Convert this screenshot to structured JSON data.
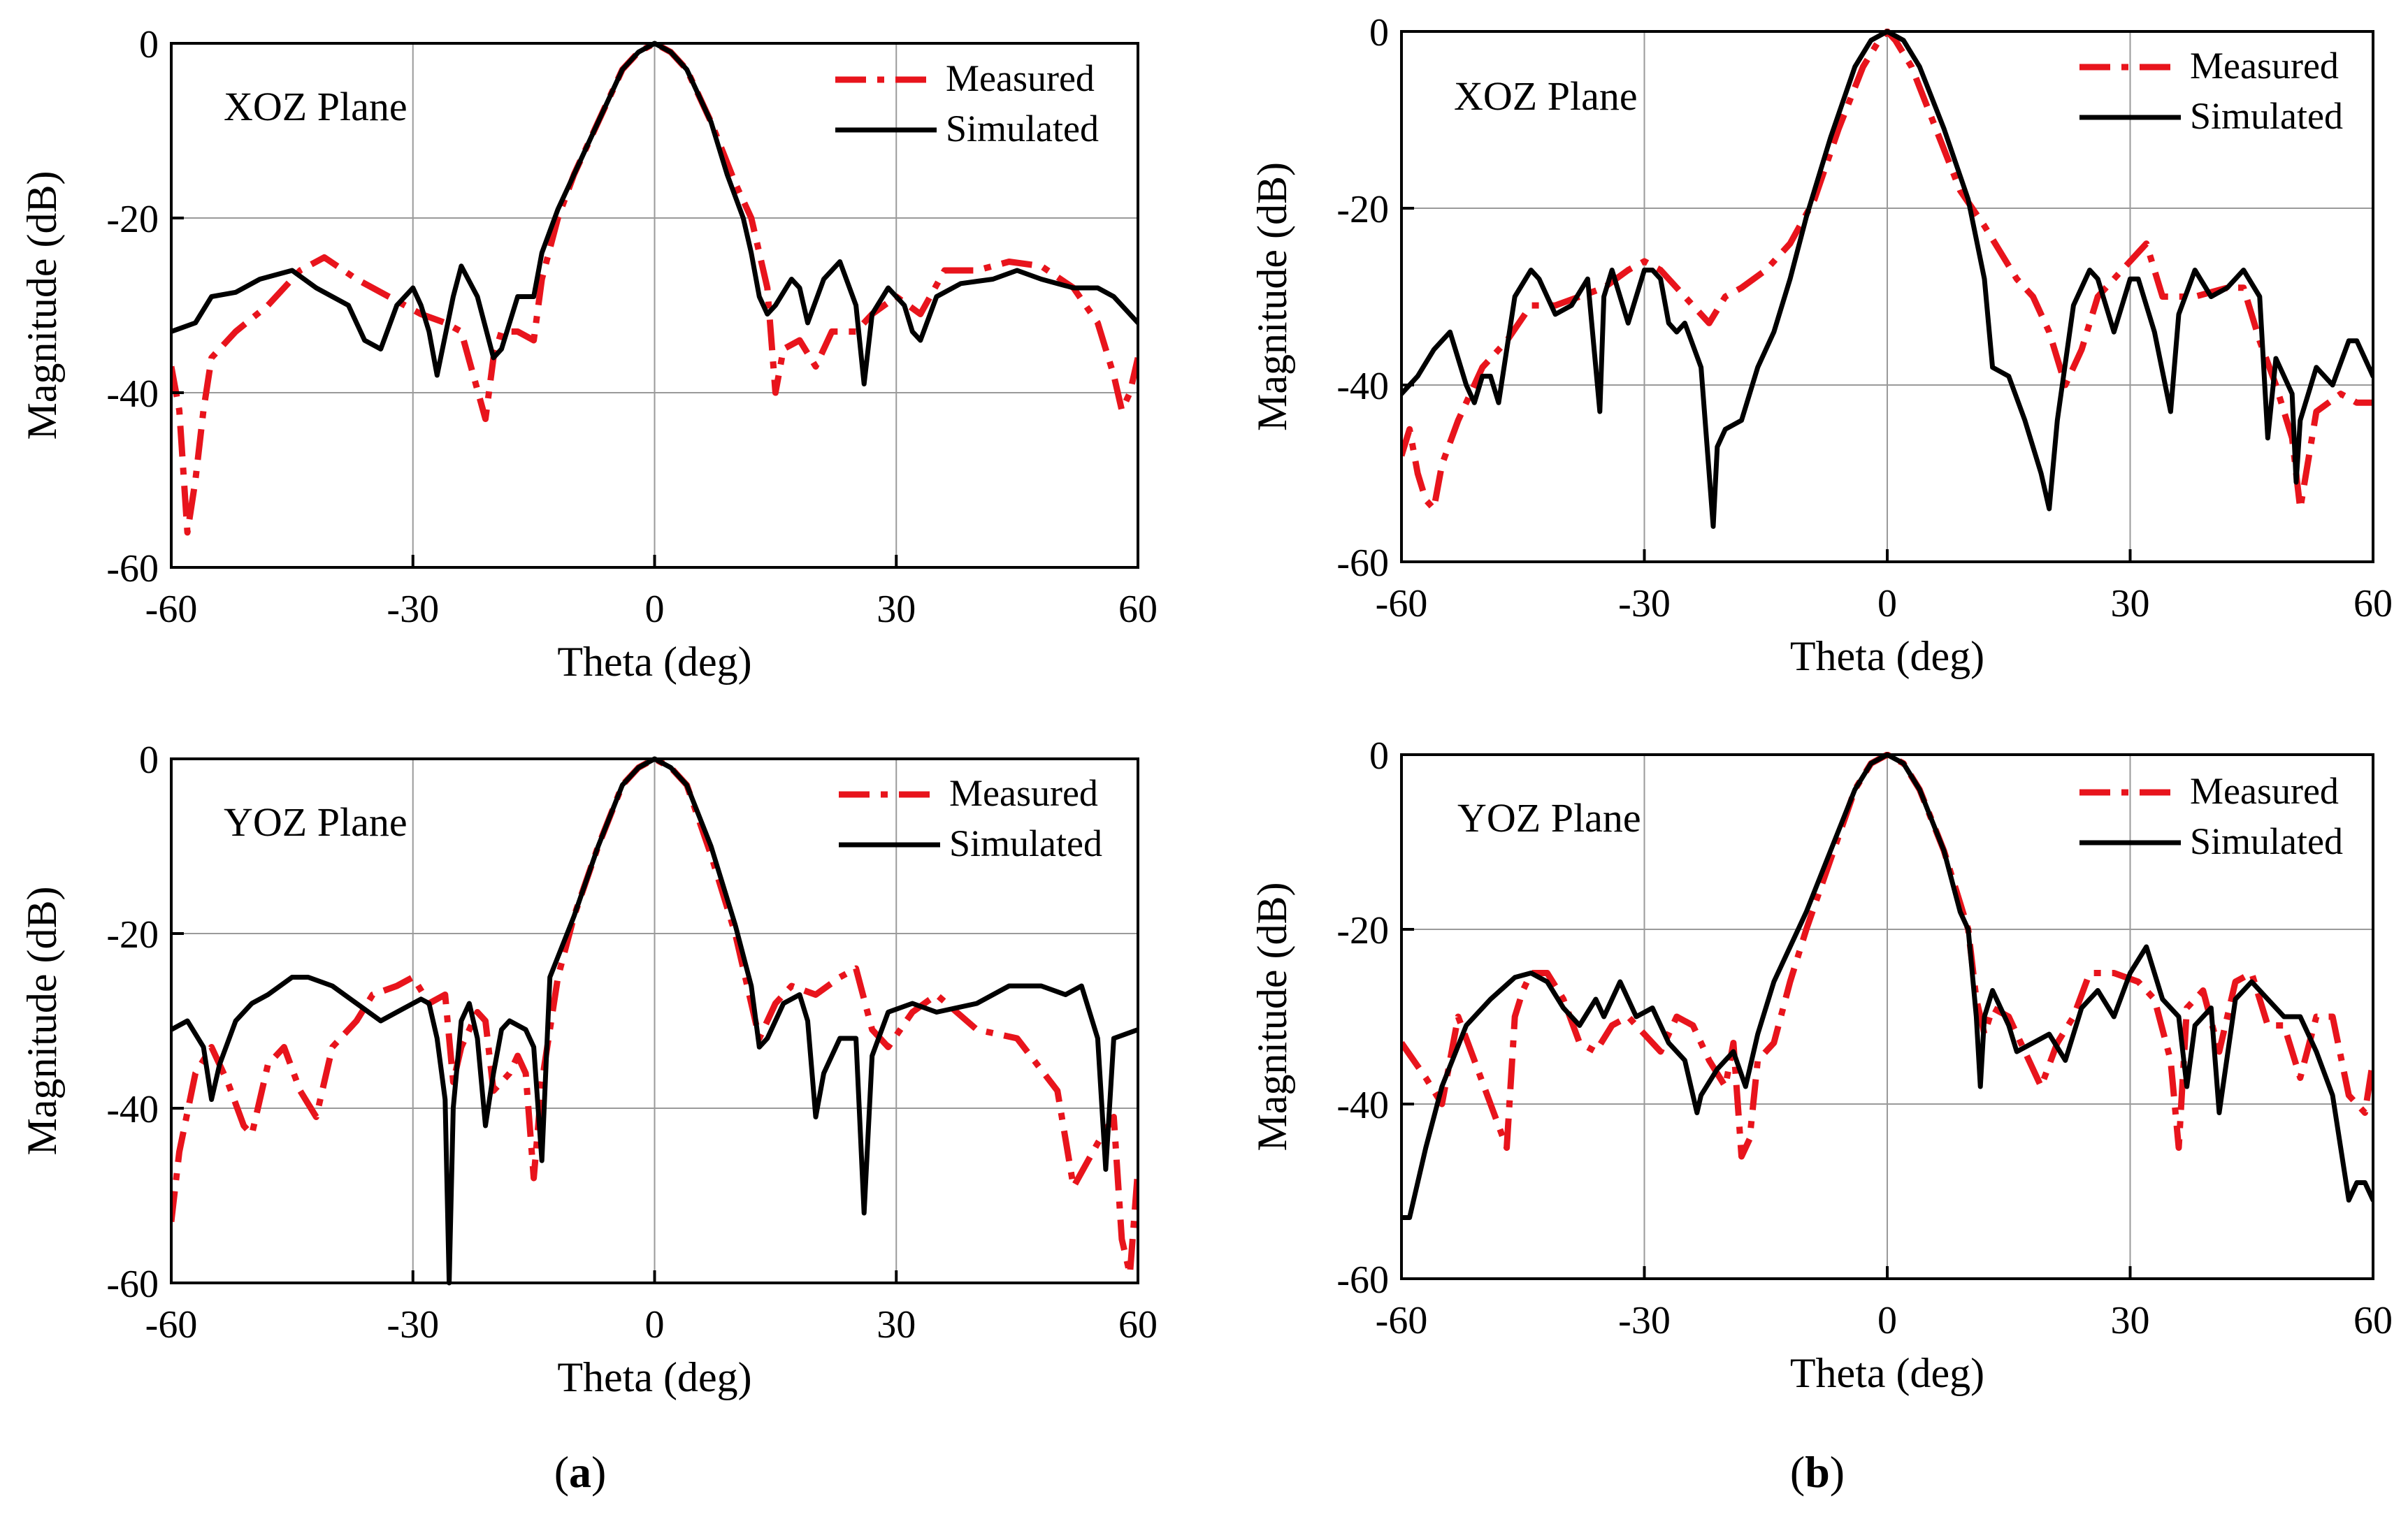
{
  "colors": {
    "measured": "#e8141c",
    "simulated": "#000000",
    "grid": "#9a9a9a"
  },
  "panel_labels": [
    {
      "open": "(",
      "letter": "a",
      "close": ")"
    },
    {
      "open": "(",
      "letter": "b",
      "close": ")"
    }
  ],
  "chart_data": [
    {
      "type": "line",
      "panel": "a",
      "plane": "XOZ Plane",
      "xlabel": "Theta (deg)",
      "ylabel": "Magnitude (dB)",
      "xlim": [
        -60,
        60
      ],
      "ylim": [
        -60,
        0
      ],
      "xticks": [
        "-60",
        "-30",
        "0",
        "30",
        "60"
      ],
      "yticks": [
        "0",
        "-20",
        "-40",
        "-60"
      ],
      "grid": true,
      "legend": "top-right",
      "series": [
        {
          "name": "Measured",
          "style": "dash-dot",
          "x": [
            -60,
            -59,
            -58,
            -57,
            -56,
            -55,
            -52,
            -48,
            -44,
            -41,
            -37,
            -33,
            -29,
            -26,
            -24,
            -21,
            -20,
            -19,
            -17,
            -15,
            -14,
            -12,
            -10,
            -7,
            -4,
            -2,
            0,
            2,
            4,
            7,
            10,
            12,
            13,
            14,
            15,
            16,
            18,
            20,
            22,
            25,
            27,
            30,
            33,
            36,
            40,
            44,
            48,
            52,
            55,
            57,
            58,
            59,
            60
          ],
          "y": [
            -37,
            -42,
            -56,
            -50,
            -42,
            -36,
            -33,
            -30,
            -26,
            -24.5,
            -27,
            -29,
            -31,
            -32,
            -33,
            -43,
            -36,
            -33,
            -33,
            -34,
            -27,
            -20,
            -15,
            -9,
            -3,
            -1,
            0,
            -1,
            -3,
            -9,
            -16,
            -20,
            -24,
            -28,
            -40,
            -35,
            -34,
            -37,
            -33,
            -33,
            -31,
            -29,
            -31,
            -26,
            -26,
            -25,
            -25.5,
            -28,
            -32,
            -38,
            -42,
            -40,
            -36
          ]
        },
        {
          "name": "Simulated",
          "style": "solid",
          "x": [
            -60,
            -57,
            -55,
            -52,
            -49,
            -45,
            -42,
            -38,
            -36,
            -34,
            -32,
            -30,
            -29,
            -28,
            -27,
            -25,
            -24,
            -22,
            -20,
            -19,
            -17,
            -15,
            -14,
            -12,
            -10,
            -7,
            -4,
            -2,
            0,
            2,
            4,
            7,
            9,
            11,
            12,
            13,
            14,
            15,
            17,
            18,
            19,
            21,
            23,
            25,
            26,
            27,
            29,
            31,
            32,
            33,
            35,
            38,
            42,
            45,
            48,
            52,
            55,
            57,
            60
          ],
          "y": [
            -33,
            -32,
            -29,
            -28.5,
            -27,
            -26,
            -28,
            -30,
            -34,
            -35,
            -30,
            -28,
            -30,
            -33,
            -38,
            -29,
            -25.5,
            -29,
            -36,
            -35,
            -29,
            -29,
            -24,
            -19,
            -15,
            -9,
            -3,
            -1,
            0,
            -1,
            -3,
            -9,
            -15,
            -20,
            -24,
            -29,
            -31,
            -30,
            -27,
            -28,
            -32,
            -27,
            -25,
            -30,
            -39,
            -31,
            -28,
            -30,
            -33,
            -34,
            -29,
            -27.5,
            -27,
            -26,
            -27,
            -28,
            -28,
            -29,
            -32
          ]
        }
      ]
    },
    {
      "type": "line",
      "panel": "a",
      "plane": "YOZ Plane",
      "xlabel": "Theta (deg)",
      "ylabel": "Magnitude (dB)",
      "xlim": [
        -60,
        60
      ],
      "ylim": [
        -60,
        0
      ],
      "xticks": [
        "-60",
        "-30",
        "0",
        "30",
        "60"
      ],
      "yticks": [
        "0",
        "-20",
        "-40",
        "-60"
      ],
      "grid": true,
      "legend": "top-right",
      "series": [
        {
          "name": "Measured",
          "style": "dash-dot",
          "x": [
            -60,
            -59,
            -57,
            -55,
            -53,
            -51,
            -50,
            -48,
            -46,
            -44,
            -42,
            -40,
            -37,
            -35,
            -32,
            -30,
            -28,
            -26,
            -25,
            -24,
            -22,
            -21,
            -20,
            -18,
            -17,
            -16,
            -15,
            -14,
            -12,
            -10,
            -7,
            -4,
            -2,
            0,
            2,
            4,
            7,
            10,
            12,
            13,
            15,
            17,
            20,
            23,
            25,
            27,
            29,
            32,
            35,
            40,
            45,
            50,
            52,
            55,
            57,
            58,
            59,
            60
          ],
          "y": [
            -53,
            -45,
            -36,
            -33,
            -37,
            -42,
            -43,
            -35,
            -33,
            -38,
            -41,
            -33,
            -30,
            -27,
            -26,
            -25,
            -28,
            -27,
            -37,
            -33,
            -29,
            -30,
            -38,
            -36,
            -34,
            -36,
            -48,
            -37,
            -25,
            -18,
            -10,
            -3,
            -1,
            0,
            -1,
            -3,
            -11,
            -20,
            -28,
            -32,
            -28,
            -26,
            -27,
            -25,
            -24,
            -31,
            -33,
            -29,
            -27,
            -31,
            -32,
            -38,
            -49,
            -44,
            -41,
            -55,
            -59,
            -47
          ]
        },
        {
          "name": "Simulated",
          "style": "solid",
          "x": [
            -60,
            -58,
            -56,
            -55,
            -54,
            -52,
            -50,
            -48,
            -45,
            -43,
            -40,
            -37,
            -34,
            -32,
            -29,
            -28,
            -27,
            -26,
            -25.5,
            -25,
            -24,
            -23,
            -22,
            -21,
            -20,
            -19,
            -18,
            -16,
            -15,
            -14,
            -13,
            -10,
            -7,
            -4,
            -2,
            0,
            2,
            4,
            7,
            10,
            12,
            13,
            14,
            16,
            18,
            19,
            20,
            21,
            23,
            25,
            26,
            27,
            29,
            32,
            35,
            40,
            44,
            48,
            51,
            53,
            55,
            56,
            57,
            60
          ],
          "y": [
            -31,
            -30,
            -33,
            -39,
            -35,
            -30,
            -28,
            -27,
            -25,
            -25,
            -26,
            -28,
            -30,
            -29,
            -27.5,
            -28,
            -32,
            -39,
            -60,
            -40,
            -30,
            -28,
            -32,
            -42,
            -36,
            -31,
            -30,
            -31,
            -33,
            -46,
            -25,
            -18,
            -10,
            -3,
            -1,
            0,
            -1,
            -3,
            -10,
            -19,
            -26,
            -33,
            -32,
            -28,
            -27,
            -30,
            -41,
            -36,
            -32,
            -32,
            -52,
            -34,
            -29,
            -28,
            -29,
            -28,
            -26,
            -26,
            -27,
            -26,
            -32,
            -47,
            -32,
            -31
          ]
        }
      ]
    },
    {
      "type": "line",
      "panel": "b",
      "plane": "XOZ Plane",
      "xlabel": "Theta (deg)",
      "ylabel": "Magnitude (dB)",
      "xlim": [
        -60,
        60
      ],
      "ylim": [
        -60,
        0
      ],
      "xticks": [
        "-60",
        "-30",
        "0",
        "30",
        "60"
      ],
      "yticks": [
        "0",
        "-20",
        "-40",
        "-60"
      ],
      "grid": true,
      "legend": "top-right",
      "series": [
        {
          "name": "Measured",
          "style": "dash-dot",
          "x": [
            -60,
            -59,
            -58,
            -57,
            -56,
            -55,
            -53,
            -50,
            -47,
            -44,
            -41,
            -38,
            -35,
            -32,
            -30,
            -28,
            -25,
            -22,
            -20,
            -18,
            -15,
            -12,
            -9,
            -6,
            -3,
            -1,
            0,
            1,
            3,
            6,
            9,
            12,
            14,
            16,
            18,
            20,
            22,
            24,
            26,
            29,
            32,
            34,
            38,
            42,
            44,
            46,
            48,
            50,
            51,
            53,
            56,
            58,
            60
          ],
          "y": [
            -48,
            -45,
            -50,
            -53,
            -54,
            -49,
            -44,
            -38,
            -35,
            -31,
            -31,
            -30,
            -29,
            -27,
            -26,
            -27,
            -30,
            -33,
            -30,
            -29,
            -27,
            -24,
            -19,
            -11,
            -4,
            -1,
            0,
            -1,
            -4,
            -11,
            -18,
            -22,
            -25,
            -28,
            -30,
            -34,
            -40,
            -36,
            -30,
            -27,
            -24,
            -30,
            -30,
            -29,
            -29,
            -35,
            -40,
            -46,
            -54,
            -43,
            -41,
            -42,
            -42
          ]
        },
        {
          "name": "Simulated",
          "style": "solid",
          "x": [
            -60,
            -58,
            -56,
            -54,
            -52,
            -51,
            -50,
            -49,
            -48,
            -46,
            -44,
            -43,
            -41,
            -39,
            -37,
            -35.5,
            -35,
            -34,
            -32,
            -30,
            -29,
            -28,
            -27,
            -26,
            -25,
            -23,
            -21.5,
            -21,
            -20,
            -18,
            -16,
            -14,
            -12,
            -10,
            -7,
            -4,
            -2,
            0,
            2,
            4,
            7,
            10,
            12,
            13,
            15,
            17,
            19,
            20,
            21,
            23,
            25,
            26,
            28,
            30,
            31,
            33,
            35,
            36,
            38,
            40,
            42,
            44,
            46,
            47,
            48,
            50,
            50.5,
            51,
            53,
            55,
            57,
            58,
            60
          ],
          "y": [
            -41,
            -39,
            -36,
            -34,
            -40,
            -42,
            -39,
            -39,
            -42,
            -30,
            -27,
            -28,
            -32,
            -31,
            -28,
            -43,
            -30,
            -27,
            -33,
            -27,
            -27,
            -28,
            -33,
            -34,
            -33,
            -38,
            -56,
            -47,
            -45,
            -44,
            -38,
            -34,
            -28,
            -21,
            -12,
            -4,
            -1,
            0,
            -1,
            -4,
            -11,
            -19,
            -28,
            -38,
            -39,
            -44,
            -50,
            -54,
            -44,
            -31,
            -27,
            -28,
            -34,
            -28,
            -28,
            -34,
            -43,
            -32,
            -27,
            -30,
            -29,
            -27,
            -30,
            -46,
            -37,
            -41,
            -51,
            -44,
            -38,
            -40,
            -35,
            -35,
            -39
          ]
        }
      ]
    },
    {
      "type": "line",
      "panel": "b",
      "plane": "YOZ Plane",
      "xlabel": "Theta (deg)",
      "ylabel": "Magnitude (dB)",
      "xlim": [
        -60,
        60
      ],
      "ylim": [
        -60,
        0
      ],
      "xticks": [
        "-60",
        "-30",
        "0",
        "30",
        "60"
      ],
      "yticks": [
        "0",
        "-20",
        "-40",
        "-60"
      ],
      "grid": true,
      "legend": "top-right",
      "series": [
        {
          "name": "Measured",
          "style": "dash-dot",
          "x": [
            -60,
            -57,
            -55,
            -53,
            -51,
            -49,
            -47,
            -46,
            -45,
            -44,
            -42,
            -40,
            -38,
            -36,
            -34,
            -32,
            -30,
            -28,
            -26,
            -24,
            -22,
            -20,
            -19,
            -18,
            -17,
            -16,
            -15,
            -14,
            -12,
            -10,
            -7,
            -4,
            -2,
            0,
            2,
            4,
            7,
            9,
            10,
            11,
            12,
            13,
            15,
            17,
            19,
            21,
            23,
            25,
            28,
            31,
            33,
            35,
            36,
            37,
            39,
            41,
            43,
            45,
            47,
            49,
            51,
            53,
            55,
            57,
            59,
            60
          ],
          "y": [
            -33,
            -37,
            -40,
            -30,
            -35,
            -40,
            -45,
            -30,
            -27,
            -25,
            -25,
            -28,
            -33,
            -34,
            -31,
            -30,
            -32,
            -34,
            -30,
            -31,
            -35,
            -38,
            -33,
            -46,
            -44,
            -35,
            -34,
            -33,
            -26,
            -20,
            -12,
            -4,
            -1,
            0,
            -1,
            -4,
            -11,
            -17,
            -20,
            -28,
            -32,
            -29,
            -30,
            -34,
            -38,
            -33,
            -30,
            -25,
            -25,
            -26,
            -28,
            -35,
            -45,
            -29,
            -27,
            -34,
            -26,
            -25,
            -31,
            -31,
            -37,
            -30,
            -30,
            -39,
            -41,
            -35
          ]
        },
        {
          "name": "Simulated",
          "style": "solid",
          "x": [
            -60,
            -59,
            -57,
            -55,
            -52,
            -49,
            -46,
            -44,
            -42,
            -40,
            -38,
            -36,
            -35,
            -33,
            -31,
            -29,
            -27,
            -25,
            -23.5,
            -23,
            -21,
            -19,
            -17.5,
            -17,
            -16,
            -14,
            -12,
            -10,
            -7,
            -4,
            -2,
            0,
            2,
            4,
            7,
            9,
            10,
            11,
            11.5,
            12,
            13,
            15,
            16,
            18,
            20,
            22,
            24,
            26,
            28,
            30,
            32,
            34,
            36,
            37,
            38,
            40,
            41,
            43,
            45,
            47,
            49,
            51,
            53,
            55,
            57,
            58,
            59,
            60
          ],
          "y": [
            -53,
            -53,
            -45,
            -38,
            -31,
            -28,
            -25.5,
            -25,
            -26,
            -29,
            -31,
            -28,
            -30,
            -26,
            -30,
            -29,
            -33,
            -35,
            -41,
            -39,
            -36,
            -34,
            -38,
            -36,
            -32,
            -26,
            -22,
            -18,
            -11,
            -4,
            -1,
            0,
            -1,
            -4,
            -11,
            -18,
            -20,
            -30,
            -38,
            -30,
            -27,
            -31,
            -34,
            -33,
            -32,
            -35,
            -29,
            -27,
            -30,
            -25,
            -22,
            -28,
            -30,
            -38,
            -31,
            -29,
            -41,
            -28,
            -26,
            -28,
            -30,
            -30,
            -34,
            -39,
            -51,
            -49,
            -49,
            -51
          ]
        }
      ]
    }
  ]
}
